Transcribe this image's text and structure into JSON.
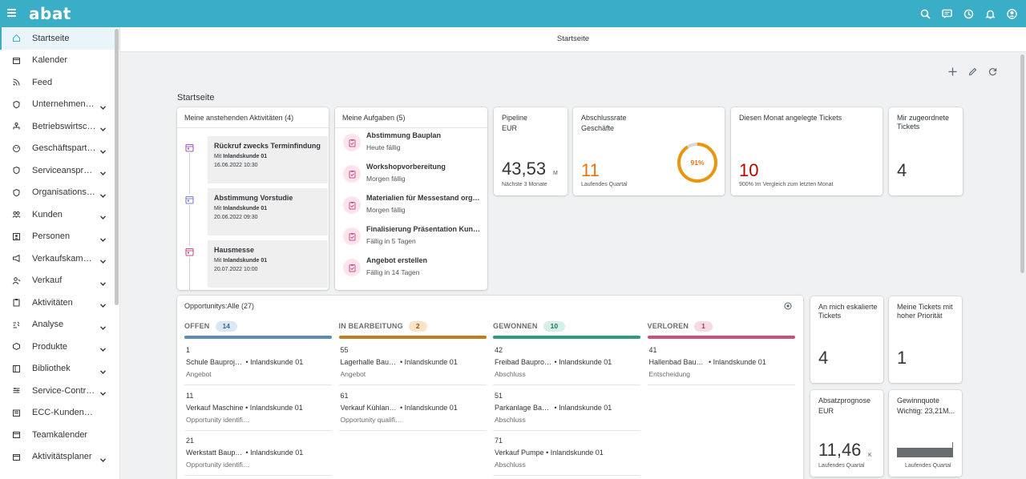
{
  "app": {
    "logo": "abat"
  },
  "header": {
    "page_title": "Startseite"
  },
  "section_title": "Startseite",
  "sidebar": {
    "items": [
      {
        "label": "Startseite",
        "icon": "home-icon"
      },
      {
        "label": "Kalender",
        "icon": "calendar-icon"
      },
      {
        "label": "Feed",
        "icon": "feed-icon"
      },
      {
        "label": "Unternehmensstruktur",
        "icon": "shield-icon"
      },
      {
        "label": "Betriebswirtschaft",
        "icon": "org-icon"
      },
      {
        "label": "Geschäftspartner",
        "icon": "partner-icon"
      },
      {
        "label": "Serviceansprüche",
        "icon": "shield-icon"
      },
      {
        "label": "Organisationsdaten",
        "icon": "shield-icon"
      },
      {
        "label": "Kunden",
        "icon": "customers-icon"
      },
      {
        "label": "Personen",
        "icon": "person-icon"
      },
      {
        "label": "Verkaufskampagnen",
        "icon": "megaphone-icon"
      },
      {
        "label": "Verkauf",
        "icon": "sales-icon"
      },
      {
        "label": "Aktivitäten",
        "icon": "clipboard-icon"
      },
      {
        "label": "Analyse",
        "icon": "analysis-icon"
      },
      {
        "label": "Produkte",
        "icon": "product-icon"
      },
      {
        "label": "Bibliothek",
        "icon": "library-icon"
      },
      {
        "label": "Service-Contracts",
        "icon": "contract-icon"
      },
      {
        "label": "ECC-Kundenaufträge",
        "icon": "order-icon"
      },
      {
        "label": "Teamkalender",
        "icon": "calendar-icon"
      },
      {
        "label": "Aktivitätsplaner",
        "icon": "calendar-icon"
      }
    ]
  },
  "activities": {
    "title": "Meine anstehenden Aktivitäten (4)",
    "items": [
      {
        "title": "Rückruf zwecks Terminfindung",
        "with_prefix": "Mit",
        "with": "Inlandskunde 01",
        "date": "16.06.2022 10:30"
      },
      {
        "title": "Abstimmung Vorstudie",
        "with_prefix": "Mit",
        "with": "Inlandskunde 01",
        "date": "20.06.2022 09:30"
      },
      {
        "title": "Hausmesse",
        "with_prefix": "Mit",
        "with": "Inlandskunde 01",
        "date": "20.07.2022 10:00"
      }
    ]
  },
  "tasks": {
    "title": "Meine Aufgaben (5)",
    "items": [
      {
        "title": "Abstimmung Bauplan",
        "due": "Heute fällig"
      },
      {
        "title": "Workshopvorbereitung",
        "due": "Morgen fällig"
      },
      {
        "title": "Materialien für Messestand organisieren",
        "due": "Morgen fällig"
      },
      {
        "title": "Finalisierung Präsentation Kundentermin",
        "due": "Fällig in 5 Tagen"
      },
      {
        "title": "Angebot erstellen",
        "due": "Fällig in 14 Tagen"
      }
    ]
  },
  "kpis": {
    "pipeline": {
      "title": "Pipeline",
      "sub": "EUR",
      "value": "43,53",
      "unit": "M",
      "footer": "Nächste 3 Monate"
    },
    "closing_rate": {
      "title": "Abschlussrate",
      "sub": "Geschäfte",
      "value": "11",
      "footer": "Laufendes Quartal",
      "percent_label": "91%",
      "percent": 0.91
    },
    "tickets_month": {
      "title": "Diesen Monat angelegte Tickets",
      "value": "10",
      "footer": "900% Im Vergleich zum letzten Monat"
    },
    "assigned_tickets": {
      "title": "Mir zugeordnete Tickets",
      "value": "4"
    },
    "escalated_tickets": {
      "title": "An mich eskalierte Tickets",
      "value": "4"
    },
    "high_priority_tickets": {
      "title": "Meine Tickets mit hoher Priorität",
      "value": "1"
    },
    "sales_forecast": {
      "title": "Absatzprognose",
      "sub": "EUR",
      "value": "11,46",
      "unit": "K",
      "footer": "Laufendes Quartal"
    },
    "win_rate": {
      "title": "Gewinnquote",
      "sub": "Wichtig: 23,21M...",
      "footer": "Laufendes Quartal"
    }
  },
  "opportunities": {
    "title": "Opportunitys:Alle (27)",
    "columns": [
      {
        "name": "OFFEN",
        "count": "14",
        "color": "#5b8db8",
        "badge_bg": "#d9e8f4",
        "badge_fg": "#3e6a92",
        "items": [
          {
            "no": "1",
            "desc": "Schule Bauprojekt",
            "customer": "• Inlandskunde 01",
            "status": "Angebot"
          },
          {
            "no": "11",
            "desc": "Verkauf Maschine",
            "customer": "• Inlandskunde 01",
            "status": "Opportunity identifiziert"
          },
          {
            "no": "21",
            "desc": "Werkstatt Bauprojekt",
            "customer": "• Inlandskunde 01",
            "status": "Opportunity identifiziert"
          }
        ]
      },
      {
        "name": "IN BEARBEITUNG",
        "count": "2",
        "color": "#c77a1a",
        "badge_bg": "#fbe4c6",
        "badge_fg": "#9b5b0e",
        "items": [
          {
            "no": "55",
            "desc": "Lagerhalle Bauprojekt",
            "customer": "• Inlandskunde 01",
            "status": "Angebot"
          },
          {
            "no": "61",
            "desc": "Verkauf Kühlanlage",
            "customer": "• Inlandskunde 01",
            "status": "Opportunity qualifiziert"
          }
        ]
      },
      {
        "name": "GEWONNEN",
        "count": "10",
        "color": "#2f9a82",
        "badge_bg": "#d6efe8",
        "badge_fg": "#1f7561",
        "items": [
          {
            "no": "42",
            "desc": "Freibad Bauprojekt",
            "customer": "• Inlandskunde 01",
            "status": "Abschluss"
          },
          {
            "no": "51",
            "desc": "Parkanlage Bauprojekt",
            "customer": "• Inlandskunde 01",
            "status": "Abschluss"
          },
          {
            "no": "71",
            "desc": "Verkauf Pumpe",
            "customer": "• Inlandskunde 01",
            "status": "Abschluss"
          }
        ]
      },
      {
        "name": "VERLOREN",
        "count": "1",
        "color": "#cc4f7a",
        "badge_bg": "#f8d9e4",
        "badge_fg": "#a83a61",
        "items": [
          {
            "no": "41",
            "desc": "Hallenbad Bauprojekt",
            "customer": "• Inlandskunde 01",
            "status": "Entscheidung"
          }
        ]
      }
    ]
  },
  "colors": {
    "brand": "#3aaec6",
    "kpi_orange": "#e9730c",
    "kpi_red": "#bb0000",
    "sidebar_active_bg": "#eaf5fb"
  }
}
